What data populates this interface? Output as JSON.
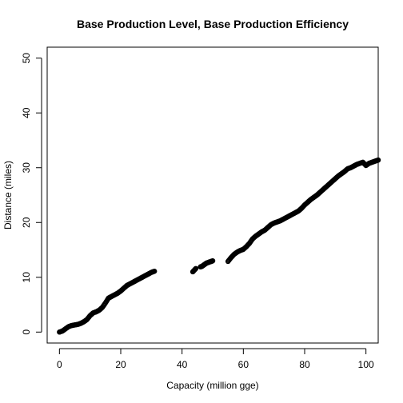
{
  "chart_data": {
    "type": "scatter",
    "title": "Base Production Level, Base Production Efficiency",
    "xlabel": "Capacity (million gge)",
    "ylabel": "Distance (miles)",
    "xlim": [
      -4,
      104
    ],
    "ylim": [
      -2,
      52
    ],
    "xticks": [
      0,
      20,
      40,
      60,
      80,
      100
    ],
    "yticks": [
      0,
      10,
      20,
      30,
      40,
      50
    ],
    "xtick_labels": [
      "0",
      "20",
      "40",
      "60",
      "80",
      "100"
    ],
    "ytick_labels": [
      "0",
      "10",
      "20",
      "30",
      "40",
      "50"
    ],
    "grid": false,
    "legend": "none",
    "marker": "open-circle",
    "marker_color": "#000000",
    "points": {
      "x": [
        0,
        1,
        2,
        3,
        4,
        5,
        6,
        7,
        8,
        9,
        10,
        11,
        12,
        13,
        14,
        15,
        16,
        17,
        18,
        19,
        20,
        21,
        22,
        23,
        24,
        25,
        26,
        27,
        28,
        29,
        30,
        31,
        43.5,
        44,
        44.5,
        46,
        46.5,
        47,
        47.5,
        48,
        48.5,
        49,
        49.5,
        50,
        55,
        56,
        57,
        58,
        59,
        60,
        61,
        62,
        63,
        64,
        65,
        66,
        67,
        68,
        69,
        70,
        71,
        72,
        73,
        74,
        75,
        76,
        77,
        78,
        79,
        80,
        81,
        82,
        83,
        84,
        85,
        86,
        87,
        88,
        89,
        90,
        91,
        92,
        93,
        94,
        95,
        96,
        97,
        98,
        99,
        100,
        101,
        102,
        103,
        104
      ],
      "y": [
        0,
        0.2,
        0.6,
        1.0,
        1.2,
        1.3,
        1.4,
        1.6,
        1.9,
        2.3,
        3.0,
        3.5,
        3.7,
        4.0,
        4.5,
        5.3,
        6.2,
        6.5,
        6.8,
        7.1,
        7.5,
        8.0,
        8.5,
        8.8,
        9.1,
        9.4,
        9.7,
        10.0,
        10.3,
        10.6,
        10.9,
        11.1,
        11.0,
        11.3,
        11.6,
        11.9,
        12.0,
        12.2,
        12.4,
        12.6,
        12.7,
        12.8,
        12.9,
        13.0,
        12.9,
        13.6,
        14.2,
        14.6,
        14.9,
        15.1,
        15.6,
        16.2,
        17.0,
        17.5,
        17.9,
        18.3,
        18.6,
        19.1,
        19.6,
        19.9,
        20.1,
        20.3,
        20.6,
        20.9,
        21.2,
        21.5,
        21.8,
        22.1,
        22.6,
        23.2,
        23.7,
        24.2,
        24.6,
        25.0,
        25.5,
        26.0,
        26.5,
        27.0,
        27.5,
        28.0,
        28.5,
        28.9,
        29.3,
        29.8,
        30.0,
        30.3,
        30.6,
        30.8,
        31.0,
        30.4,
        30.8,
        31.0,
        31.2,
        31.4
      ]
    }
  }
}
